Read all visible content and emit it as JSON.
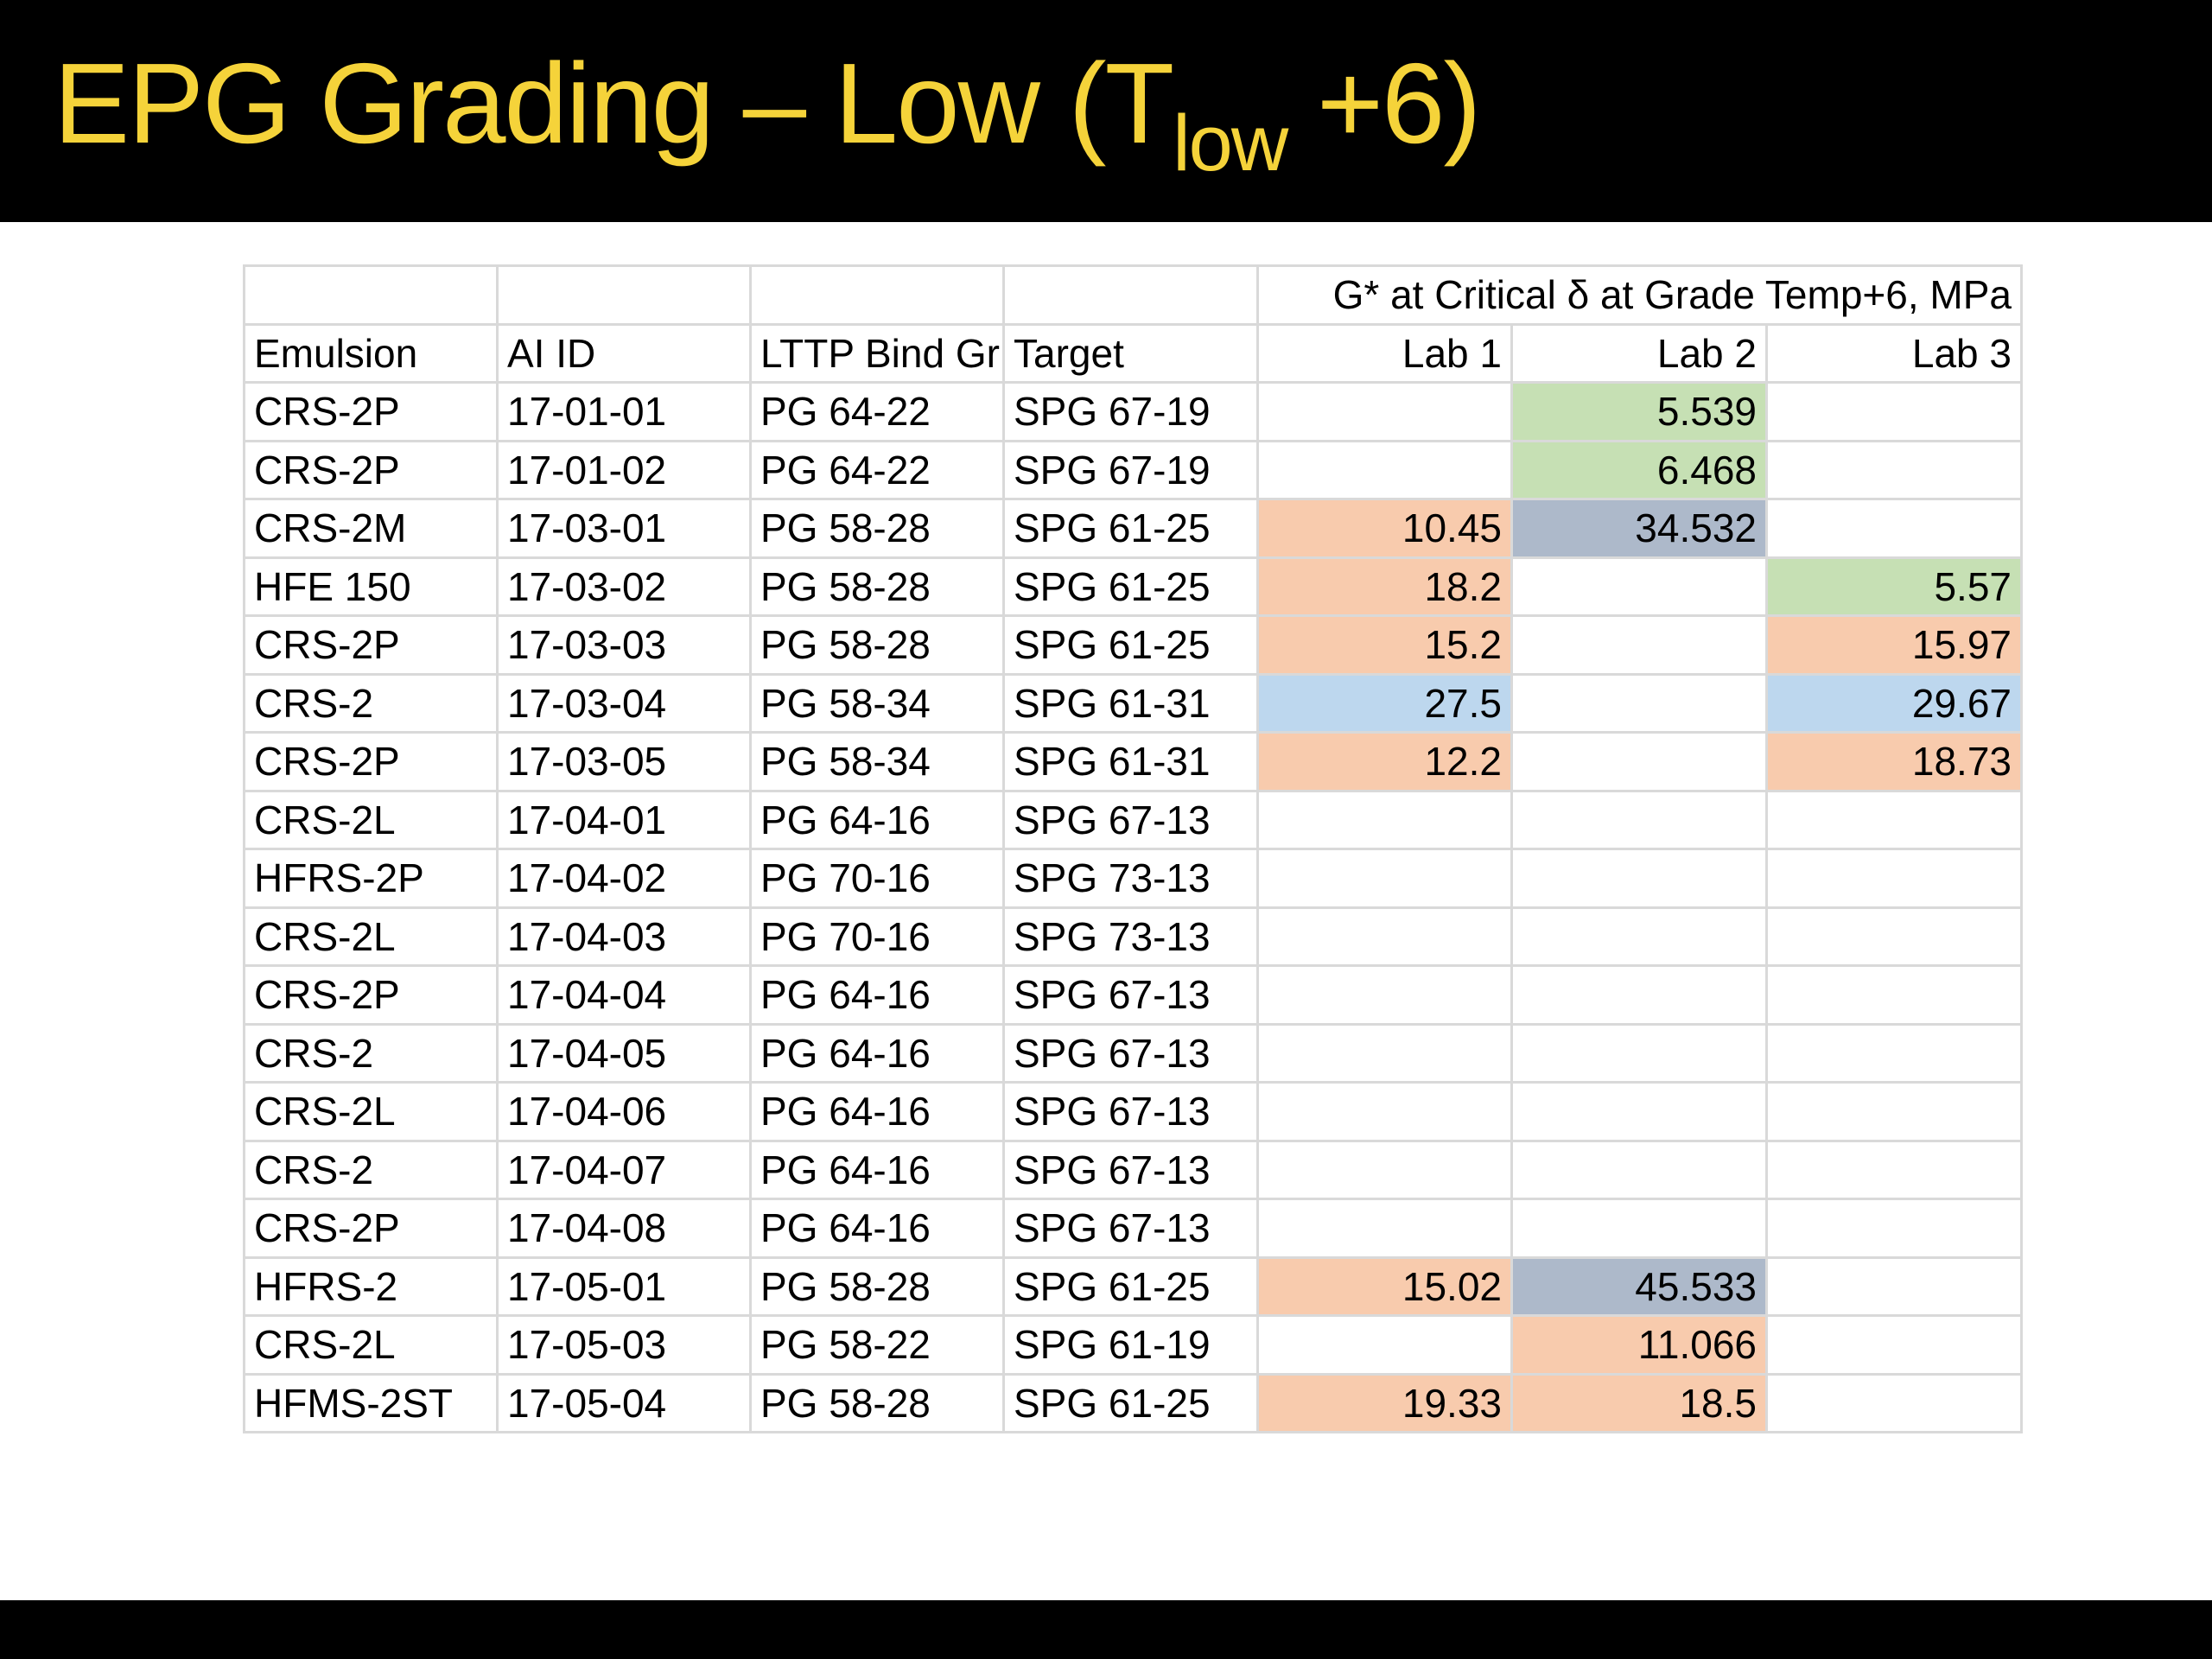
{
  "title": {
    "main": "EPG Grading – Low (T",
    "sub": "low",
    "tail": " +6)"
  },
  "header": {
    "group_label": "G* at Critical δ at Grade Temp+6,  MPa",
    "columns": [
      "Emulsion",
      "AI ID",
      "LTTP Bind Gr",
      "Target",
      "Lab 1",
      "Lab 2",
      "Lab 3"
    ]
  },
  "colors": {
    "title_text": "#f5d33a",
    "bar": "#000000",
    "orange_fill": "#f8cbad",
    "green_fill": "#c6e0b4",
    "blue_fill": "#bdd7ee",
    "gray_fill": "#adb9ca",
    "brown_text": "#843c0c"
  },
  "rows": [
    {
      "emulsion": "CRS-2P",
      "ai_id": "17-01-01",
      "lttp": "PG 64-22",
      "target": "SPG 67-19",
      "lab1": "",
      "lab2": "5.539",
      "lab3": ""
    },
    {
      "emulsion": "CRS-2P",
      "ai_id": "17-01-02",
      "lttp": "PG 64-22",
      "target": "SPG 67-19",
      "lab1": "",
      "lab2": "6.468",
      "lab3": ""
    },
    {
      "emulsion": "CRS-2M",
      "ai_id": "17-03-01",
      "lttp": "PG 58-28",
      "target": "SPG 61-25",
      "lab1": "10.45",
      "lab2": "34.532",
      "lab3": ""
    },
    {
      "emulsion": "HFE 150",
      "ai_id": "17-03-02",
      "lttp": "PG 58-28",
      "target": "SPG 61-25",
      "lab1": "18.2",
      "lab2": "",
      "lab3": "5.57"
    },
    {
      "emulsion": "CRS-2P",
      "ai_id": "17-03-03",
      "lttp": "PG 58-28",
      "target": "SPG 61-25",
      "lab1": "15.2",
      "lab2": "",
      "lab3": "15.97"
    },
    {
      "emulsion": "CRS-2",
      "ai_id": "17-03-04",
      "lttp": "PG 58-34",
      "target": "SPG 61-31",
      "lab1": "27.5",
      "lab2": "",
      "lab3": "29.67"
    },
    {
      "emulsion": "CRS-2P",
      "ai_id": "17-03-05",
      "lttp": "PG 58-34",
      "target": "SPG 61-31",
      "lab1": "12.2",
      "lab2": "",
      "lab3": "18.73"
    },
    {
      "emulsion": "CRS-2L",
      "ai_id": "17-04-01",
      "lttp": "PG 64-16",
      "target": "SPG 67-13",
      "lab1": "",
      "lab2": "",
      "lab3": ""
    },
    {
      "emulsion": "HFRS-2P",
      "ai_id": "17-04-02",
      "lttp": "PG 70-16",
      "target": "SPG 73-13",
      "lab1": "",
      "lab2": "",
      "lab3": ""
    },
    {
      "emulsion": "CRS-2L",
      "ai_id": "17-04-03",
      "lttp": "PG 70-16",
      "target": "SPG 73-13",
      "lab1": "",
      "lab2": "",
      "lab3": ""
    },
    {
      "emulsion": "CRS-2P",
      "ai_id": "17-04-04",
      "lttp": "PG 64-16",
      "target": "SPG 67-13",
      "lab1": "",
      "lab2": "",
      "lab3": ""
    },
    {
      "emulsion": "CRS-2",
      "ai_id": "17-04-05",
      "lttp": "PG 64-16",
      "target": "SPG 67-13",
      "lab1": "",
      "lab2": "",
      "lab3": ""
    },
    {
      "emulsion": "CRS-2L",
      "ai_id": "17-04-06",
      "lttp": "PG 64-16",
      "target": "SPG 67-13",
      "lab1": "",
      "lab2": "",
      "lab3": ""
    },
    {
      "emulsion": "CRS-2",
      "ai_id": "17-04-07",
      "lttp": "PG 64-16",
      "target": "SPG 67-13",
      "lab1": "",
      "lab2": "",
      "lab3": ""
    },
    {
      "emulsion": "CRS-2P",
      "ai_id": "17-04-08",
      "lttp": "PG 64-16",
      "target": "SPG 67-13",
      "lab1": "",
      "lab2": "",
      "lab3": ""
    },
    {
      "emulsion": "HFRS-2",
      "ai_id": "17-05-01",
      "lttp": "PG 58-28",
      "target": "SPG 61-25",
      "lab1": "15.02",
      "lab2": "45.533",
      "lab3": ""
    },
    {
      "emulsion": "CRS-2L",
      "ai_id": "17-05-03",
      "lttp": "PG 58-22",
      "target": "SPG 61-19",
      "lab1": "",
      "lab2": "11.066",
      "lab3": ""
    },
    {
      "emulsion": "HFMS-2ST",
      "ai_id": "17-05-04",
      "lttp": "PG 58-28",
      "target": "SPG 61-25",
      "lab1": "19.33",
      "lab2": "18.5",
      "lab3": ""
    }
  ]
}
